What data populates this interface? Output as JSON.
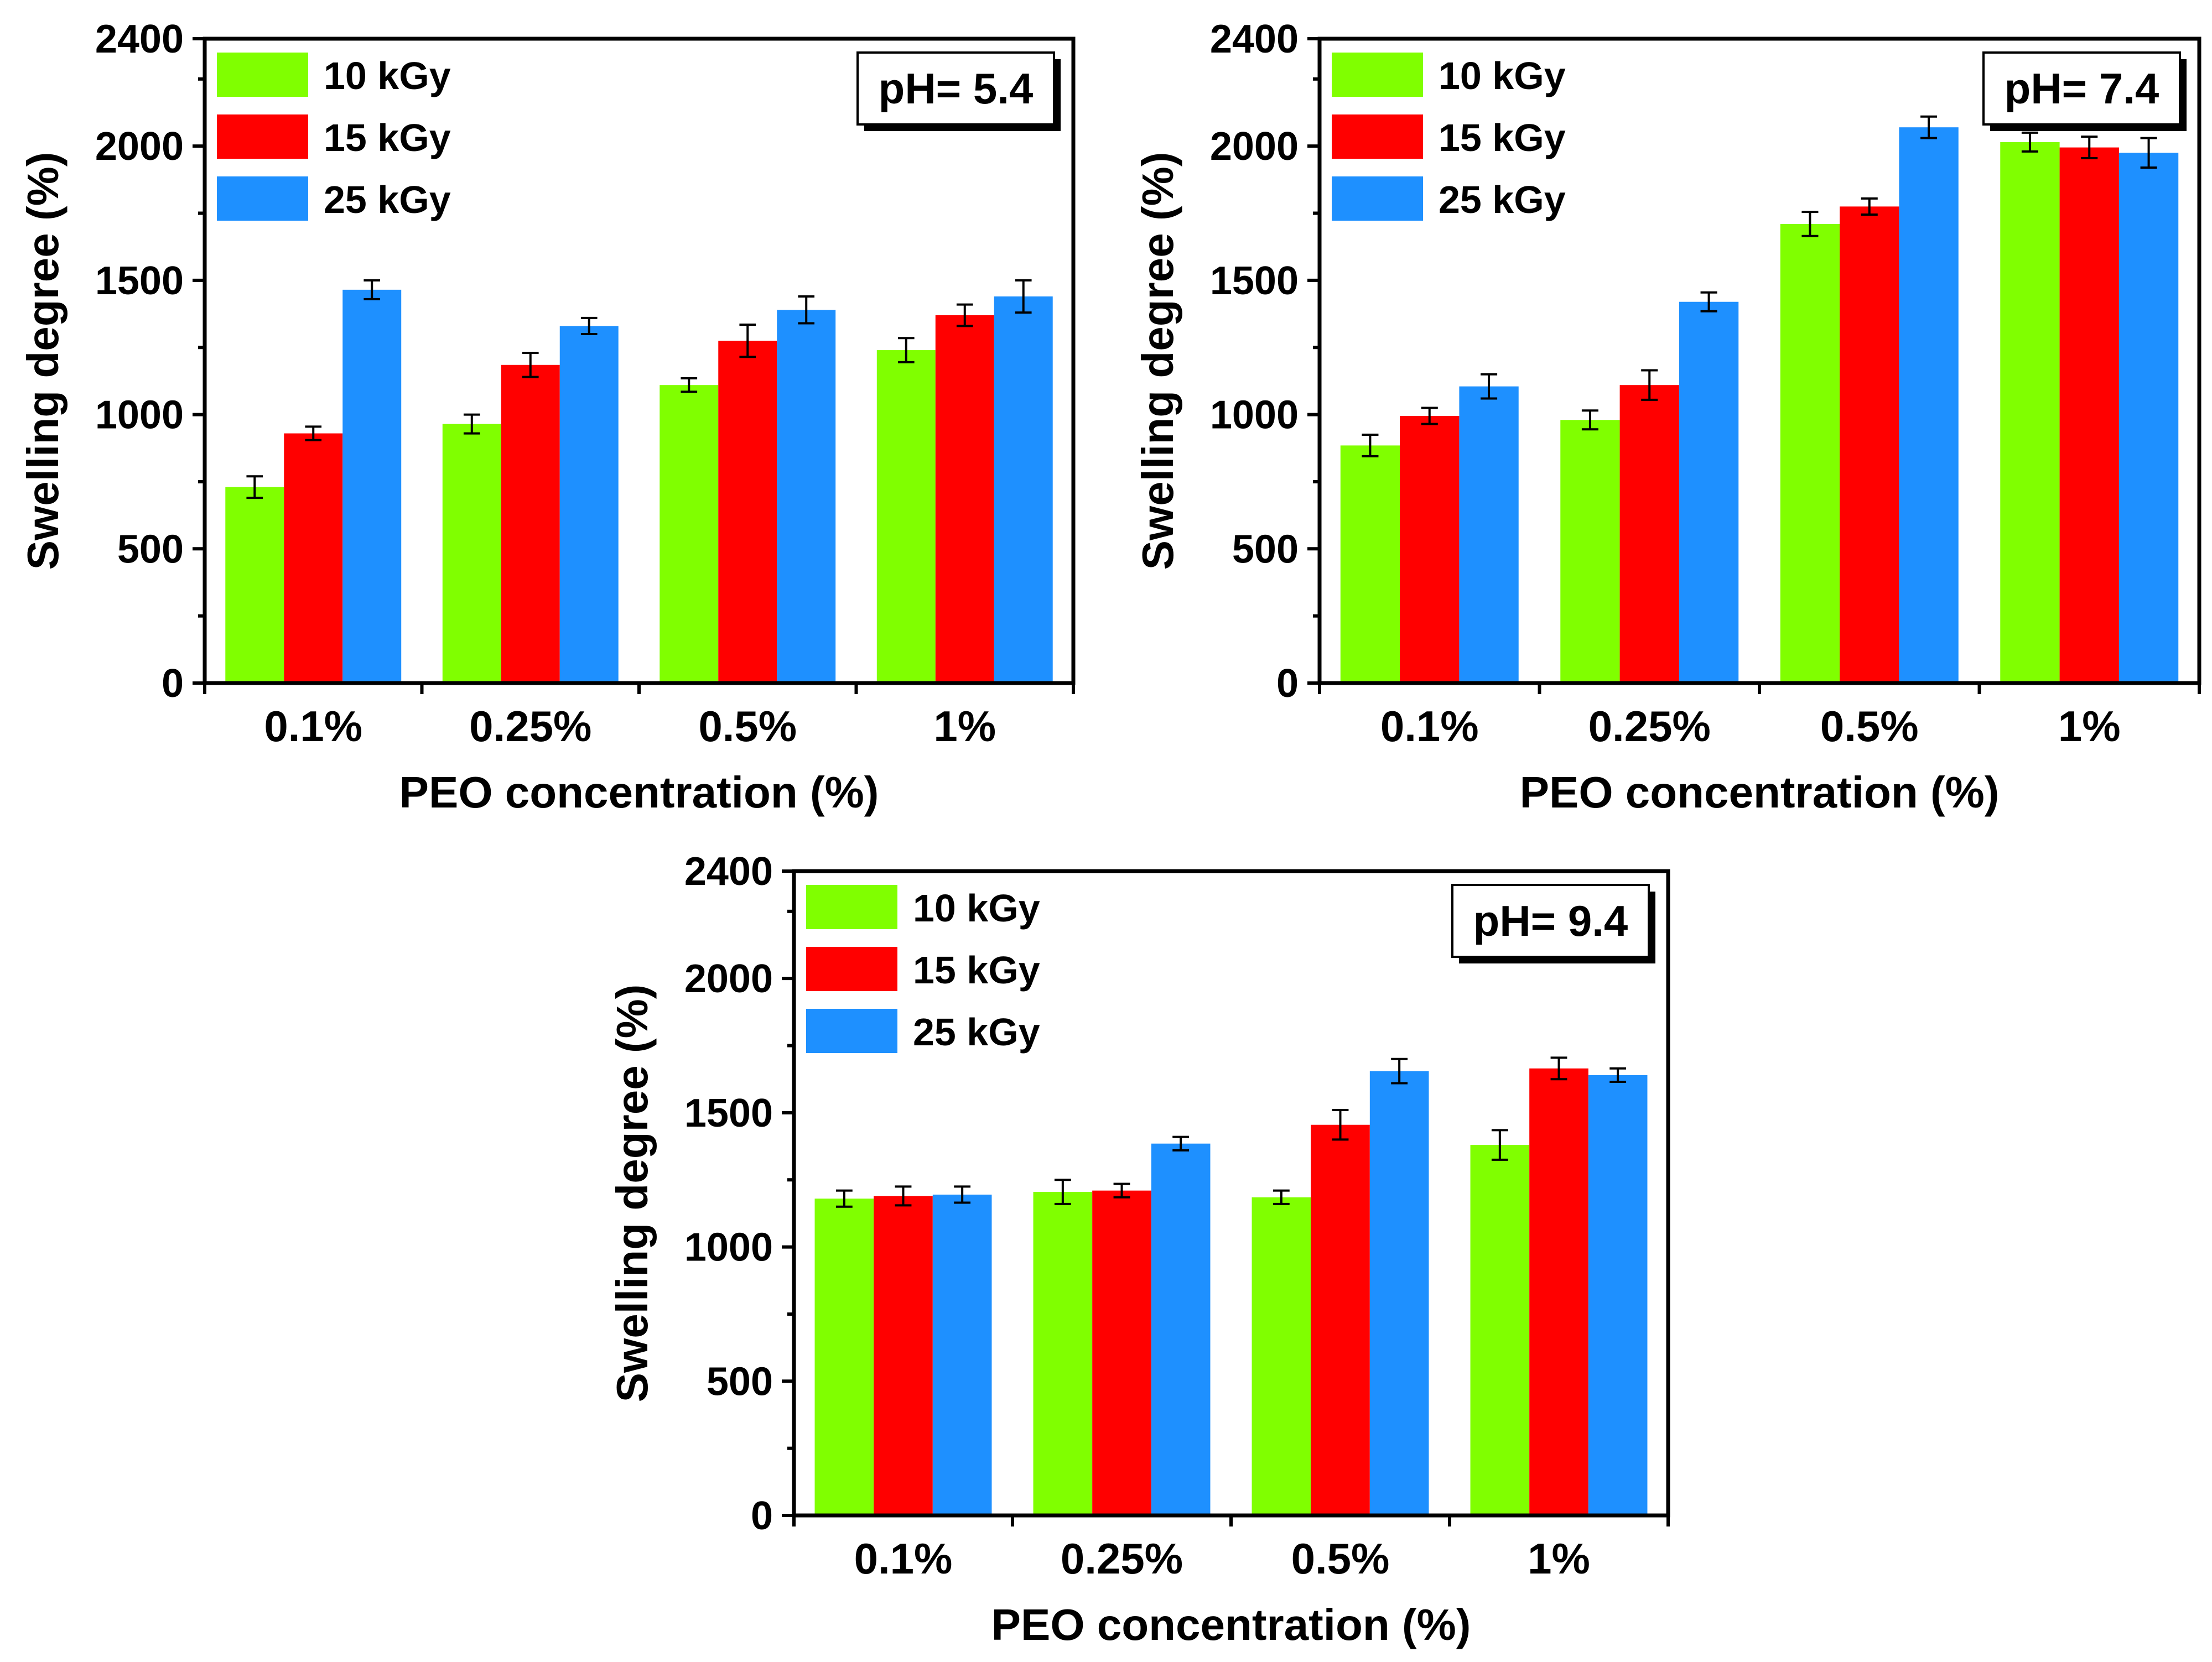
{
  "chart_data": [
    {
      "type": "bar",
      "annotation": "pH= 5.4",
      "categories": [
        "0.1%",
        "0.25%",
        "0.5%",
        "1%"
      ],
      "series": [
        {
          "name": "10 kGy",
          "color": "#80ff00",
          "values": [
            730,
            965,
            1110,
            1240
          ],
          "errors": [
            40,
            35,
            25,
            45
          ]
        },
        {
          "name": "15 kGy",
          "color": "#ff0000",
          "values": [
            930,
            1185,
            1275,
            1370
          ],
          "errors": [
            25,
            45,
            60,
            40
          ]
        },
        {
          "name": "25 kGy",
          "color": "#1e90ff",
          "values": [
            1465,
            1330,
            1390,
            1440
          ],
          "errors": [
            35,
            30,
            50,
            60
          ]
        }
      ],
      "xlabel": "PEO concentration (%)",
      "ylabel": "Swelling degree (%)",
      "ylim": [
        0,
        2400
      ],
      "yticks": [
        0,
        500,
        1000,
        1500,
        2000,
        2400
      ],
      "legend_position": "top-left"
    },
    {
      "type": "bar",
      "annotation": "pH= 7.4",
      "categories": [
        "0.1%",
        "0.25%",
        "0.5%",
        "1%"
      ],
      "series": [
        {
          "name": "10 kGy",
          "color": "#80ff00",
          "values": [
            885,
            980,
            1710,
            2015
          ],
          "errors": [
            40,
            35,
            45,
            35
          ]
        },
        {
          "name": "15 kGy",
          "color": "#ff0000",
          "values": [
            995,
            1110,
            1775,
            1995
          ],
          "errors": [
            30,
            55,
            30,
            40
          ]
        },
        {
          "name": "25 kGy",
          "color": "#1e90ff",
          "values": [
            1105,
            1420,
            2070,
            1975
          ],
          "errors": [
            45,
            35,
            40,
            55
          ]
        }
      ],
      "xlabel": "PEO concentration (%)",
      "ylabel": "Swelling degree (%)",
      "ylim": [
        0,
        2400
      ],
      "yticks": [
        0,
        500,
        1000,
        1500,
        2000,
        2400
      ],
      "legend_position": "top-left"
    },
    {
      "type": "bar",
      "annotation": "pH= 9.4",
      "categories": [
        "0.1%",
        "0.25%",
        "0.5%",
        "1%"
      ],
      "series": [
        {
          "name": "10 kGy",
          "color": "#80ff00",
          "values": [
            1180,
            1205,
            1185,
            1380
          ],
          "errors": [
            30,
            45,
            25,
            55
          ]
        },
        {
          "name": "15 kGy",
          "color": "#ff0000",
          "values": [
            1190,
            1210,
            1455,
            1665
          ],
          "errors": [
            35,
            25,
            55,
            40
          ]
        },
        {
          "name": "25 kGy",
          "color": "#1e90ff",
          "values": [
            1195,
            1385,
            1655,
            1640
          ],
          "errors": [
            30,
            25,
            45,
            25
          ]
        }
      ],
      "xlabel": "PEO concentration (%)",
      "ylabel": "Swelling degree (%)",
      "ylim": [
        0,
        2400
      ],
      "yticks": [
        0,
        500,
        1000,
        1500,
        2000,
        2400
      ],
      "legend_position": "top-left"
    }
  ]
}
